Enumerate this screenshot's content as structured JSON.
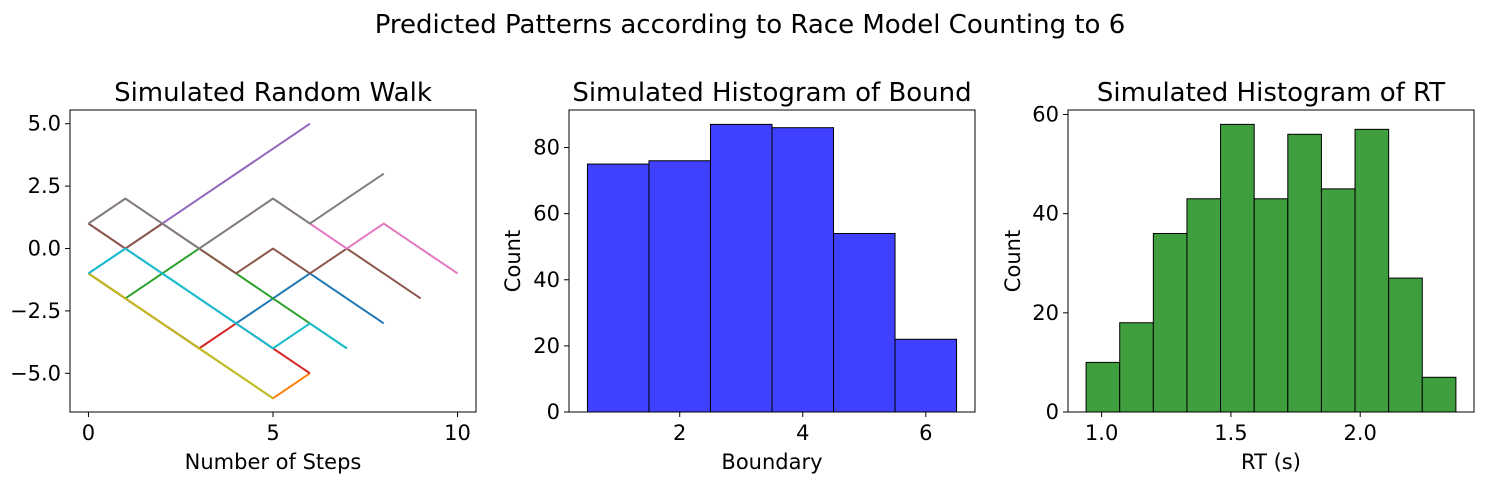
{
  "figure": {
    "suptitle": "Predicted Patterns according to Race Model Counting to 6"
  },
  "chart_data": [
    {
      "type": "line",
      "title": "Simulated Random Walk",
      "xlabel": "Number of Steps",
      "ylabel": "",
      "xlim": [
        -0.5,
        10.5
      ],
      "ylim": [
        -6.55,
        5.55
      ],
      "xticks": [
        0,
        5,
        10
      ],
      "xtick_labels": [
        "0",
        "5",
        "10"
      ],
      "yticks": [
        -5,
        -2.5,
        0,
        2.5,
        5
      ],
      "ytick_labels": [
        "−5.0",
        "−2.5",
        "0.0",
        "2.5",
        "5.0"
      ],
      "grid": false,
      "series": [
        {
          "color": "#1f77b4",
          "x": [
            0,
            1,
            2,
            3,
            4,
            5,
            6,
            7,
            8
          ],
          "y": [
            -1,
            0,
            -1,
            -2,
            -3,
            -2,
            -1,
            -2,
            -3
          ]
        },
        {
          "color": "#ff7f0e",
          "x": [
            0,
            1,
            2,
            3,
            4,
            5,
            6
          ],
          "y": [
            -1,
            -2,
            -3,
            -4,
            -5,
            -6,
            -5
          ]
        },
        {
          "color": "#2ca02c",
          "x": [
            0,
            1,
            2,
            3,
            4,
            5,
            6,
            7
          ],
          "y": [
            -1,
            -2,
            -1,
            0,
            -1,
            -2,
            -3,
            -4
          ]
        },
        {
          "color": "#d62728",
          "x": [
            0,
            1,
            2,
            3,
            4,
            5,
            6
          ],
          "y": [
            -1,
            -2,
            -3,
            -4,
            -3,
            -4,
            -5
          ]
        },
        {
          "color": "#9467bd",
          "x": [
            0,
            1,
            2,
            3,
            4,
            5,
            6
          ],
          "y": [
            1,
            0,
            1,
            2,
            3,
            4,
            5
          ]
        },
        {
          "color": "#8c564b",
          "x": [
            0,
            1,
            2,
            3,
            4,
            5,
            6,
            7,
            8,
            9
          ],
          "y": [
            1,
            0,
            1,
            0,
            -1,
            0,
            -1,
            0,
            -1,
            -2
          ]
        },
        {
          "color": "#e377c2",
          "x": [
            0,
            1,
            2,
            3,
            4,
            5,
            6,
            7,
            8,
            9,
            10
          ],
          "y": [
            1,
            2,
            1,
            0,
            1,
            2,
            1,
            0,
            1,
            0,
            -1
          ]
        },
        {
          "color": "#7f7f7f",
          "x": [
            0,
            1,
            2,
            3,
            4,
            5,
            6,
            7,
            8
          ],
          "y": [
            1,
            2,
            1,
            0,
            1,
            2,
            1,
            2,
            3
          ]
        },
        {
          "color": "#bcbd22",
          "x": [
            0,
            1,
            2,
            3,
            4,
            5
          ],
          "y": [
            -1,
            -2,
            -3,
            -4,
            -5,
            -6
          ]
        },
        {
          "color": "#17becf",
          "x": [
            0,
            1,
            2,
            3,
            4,
            5,
            6,
            7
          ],
          "y": [
            -1,
            0,
            -1,
            -2,
            -3,
            -4,
            -3,
            -4
          ]
        }
      ]
    },
    {
      "type": "bar",
      "title": "Simulated Histogram of Bound",
      "xlabel": "Boundary",
      "ylabel": "Count",
      "bin_edges": [
        0.5,
        1.5,
        2.5,
        3.5,
        4.5,
        5.5,
        6.5
      ],
      "values": [
        75,
        76,
        87,
        86,
        54,
        22
      ],
      "bar_color": "#4040ff",
      "edge_color": "#000000",
      "xlim": [
        0.2,
        6.8
      ],
      "ylim": [
        0,
        91.35
      ],
      "xticks": [
        2,
        4,
        6
      ],
      "xtick_labels": [
        "2",
        "4",
        "6"
      ],
      "yticks": [
        0,
        20,
        40,
        60,
        80
      ],
      "ytick_labels": [
        "0",
        "20",
        "40",
        "60",
        "80"
      ],
      "grid": false
    },
    {
      "type": "bar",
      "title": "Simulated Histogram of RT",
      "xlabel": "RT (s)",
      "ylabel": "Count",
      "bin_edges": [
        0.94,
        1.07,
        1.2,
        1.33,
        1.46,
        1.59,
        1.72,
        1.85,
        1.98,
        2.11,
        2.24,
        2.37
      ],
      "values": [
        10,
        18,
        36,
        43,
        58,
        43,
        56,
        45,
        57,
        27,
        7
      ],
      "bar_color": "#3f9f3f",
      "edge_color": "#000000",
      "xlim": [
        0.87,
        2.44
      ],
      "ylim": [
        0,
        60.9
      ],
      "xticks": [
        1.0,
        1.5,
        2.0
      ],
      "xtick_labels": [
        "1.0",
        "1.5",
        "2.0"
      ],
      "yticks": [
        0,
        20,
        40,
        60
      ],
      "ytick_labels": [
        "0",
        "20",
        "40",
        "60"
      ],
      "grid": false
    }
  ]
}
